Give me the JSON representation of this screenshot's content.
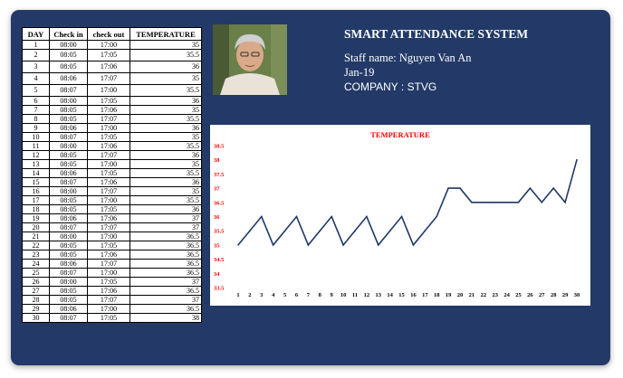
{
  "app": {
    "title": "SMART ATTENDANCE SYSTEM",
    "staff_name": "Staff name: Nguyen Van An",
    "period": "Jan-19",
    "company": "COMPANY : STVG"
  },
  "table": {
    "headers": [
      "DAY",
      "Check in",
      "check out",
      "TEMPERATURE"
    ],
    "rows": [
      [
        "1",
        "08:00",
        "17:00",
        "35"
      ],
      [
        "2",
        "08:05",
        "17:05",
        "35.5"
      ],
      [
        "3",
        "08:05",
        "17:06",
        "36"
      ],
      [
        "4",
        "08:06",
        "17:07",
        "35"
      ],
      [
        "5",
        "08:07",
        "17:00",
        "35.5"
      ],
      [
        "6",
        "08:00",
        "17:05",
        "36"
      ],
      [
        "7",
        "08:05",
        "17:06",
        "35"
      ],
      [
        "8",
        "08:05",
        "17:07",
        "35.5"
      ],
      [
        "9",
        "08:06",
        "17:00",
        "36"
      ],
      [
        "10",
        "08:07",
        "17:05",
        "35"
      ],
      [
        "11",
        "08:00",
        "17:06",
        "35.5"
      ],
      [
        "12",
        "08:05",
        "17:07",
        "36"
      ],
      [
        "13",
        "08:05",
        "17:00",
        "35"
      ],
      [
        "14",
        "08:06",
        "17:05",
        "35.5"
      ],
      [
        "15",
        "08:07",
        "17:06",
        "36"
      ],
      [
        "16",
        "08:00",
        "17:07",
        "35"
      ],
      [
        "17",
        "08:05",
        "17:00",
        "35.5"
      ],
      [
        "18",
        "08:05",
        "17:05",
        "36"
      ],
      [
        "19",
        "08:06",
        "17:06",
        "37"
      ],
      [
        "20",
        "08:07",
        "17:07",
        "37"
      ],
      [
        "21",
        "08:00",
        "17:00",
        "36.5"
      ],
      [
        "22",
        "08:05",
        "17:05",
        "36.5"
      ],
      [
        "23",
        "08:05",
        "17:06",
        "36.5"
      ],
      [
        "24",
        "08:06",
        "17:07",
        "36.5"
      ],
      [
        "25",
        "08:07",
        "17:00",
        "36.5"
      ],
      [
        "26",
        "08:00",
        "17:05",
        "37"
      ],
      [
        "27",
        "08:05",
        "17:06",
        "36.5"
      ],
      [
        "28",
        "08:05",
        "17:07",
        "37"
      ],
      [
        "29",
        "08:06",
        "17:00",
        "36.5"
      ],
      [
        "30",
        "08:07",
        "17:05",
        "38"
      ]
    ]
  },
  "chart_data": {
    "type": "line",
    "title": "TEMPERATURE",
    "title_color": "#ff0000",
    "tick_color": "#ff0000",
    "line_color": "#1f3864",
    "x": [
      1,
      2,
      3,
      4,
      5,
      6,
      7,
      8,
      9,
      10,
      11,
      12,
      13,
      14,
      15,
      16,
      17,
      18,
      19,
      20,
      21,
      22,
      23,
      24,
      25,
      26,
      27,
      28,
      29,
      30
    ],
    "values": [
      35,
      35.5,
      36,
      35,
      35.5,
      36,
      35,
      35.5,
      36,
      35,
      35.5,
      36,
      35,
      35.5,
      36,
      35,
      35.5,
      36,
      37,
      37,
      36.5,
      36.5,
      36.5,
      36.5,
      36.5,
      37,
      36.5,
      37,
      36.5,
      38
    ],
    "yticks": [
      "38.5",
      "38",
      "37.5",
      "37",
      "36.5",
      "36",
      "35.5",
      "35",
      "34.5",
      "34",
      "33.5"
    ],
    "ylim": [
      33.5,
      38.5
    ],
    "grid": false,
    "legend": "none"
  }
}
